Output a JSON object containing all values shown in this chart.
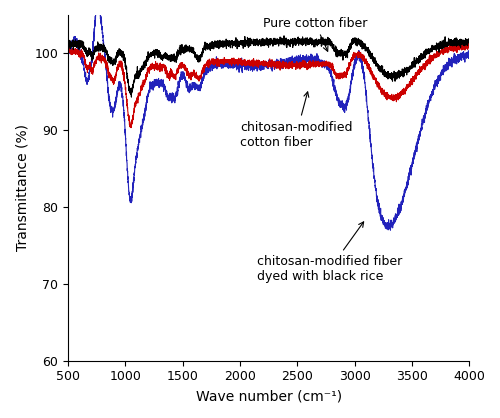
{
  "xlabel": "Wave number (cm⁻¹)",
  "ylabel": "Transmittance (%)",
  "xlim_left": 4000,
  "xlim_right": 500,
  "ylim": [
    60,
    105
  ],
  "yticks": [
    60,
    70,
    80,
    90,
    100
  ],
  "xticks": [
    4000,
    3500,
    3000,
    2500,
    2000,
    1500,
    1000,
    500
  ],
  "color_black": "#000000",
  "color_red": "#cc0000",
  "color_blue": "#2222bb"
}
